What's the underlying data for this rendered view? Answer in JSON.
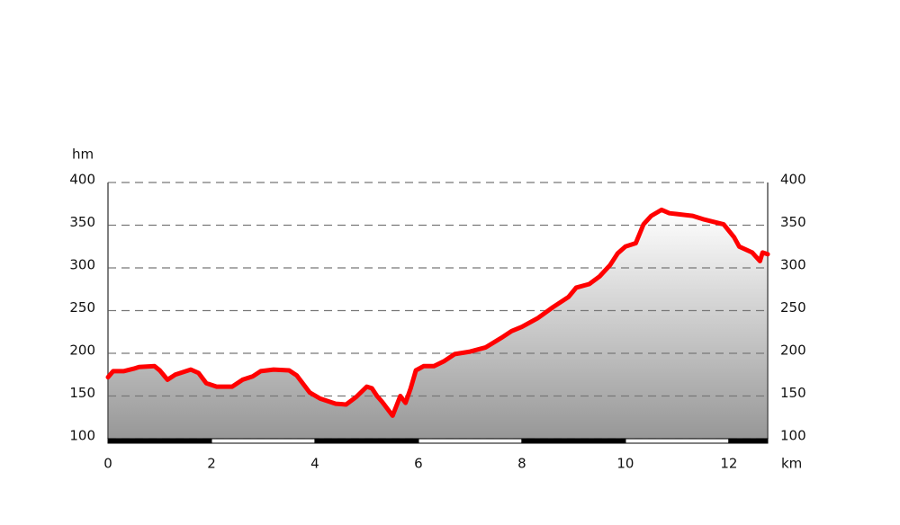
{
  "chart_data": {
    "type": "area",
    "ylabel": "hm",
    "xlabel": "km",
    "x": [
      0,
      0.1,
      0.3,
      0.5,
      0.6,
      0.9,
      1.0,
      1.15,
      1.3,
      1.6,
      1.75,
      1.9,
      2.1,
      2.4,
      2.6,
      2.8,
      2.95,
      3.2,
      3.5,
      3.65,
      3.9,
      4.1,
      4.4,
      4.6,
      4.8,
      5.0,
      5.1,
      5.2,
      5.3,
      5.5,
      5.65,
      5.75,
      5.85,
      5.95,
      6.1,
      6.3,
      6.5,
      6.7,
      7.0,
      7.3,
      7.6,
      7.8,
      8.0,
      8.3,
      8.6,
      8.9,
      9.05,
      9.3,
      9.5,
      9.7,
      9.85,
      10.0,
      10.2,
      10.35,
      10.5,
      10.7,
      10.85,
      11.0,
      11.3,
      11.5,
      11.9,
      12.1,
      12.2,
      12.45,
      12.6,
      12.65,
      12.75
    ],
    "values": [
      172,
      179,
      179,
      182,
      184,
      185,
      180,
      169,
      175,
      181,
      177,
      165,
      161,
      161,
      169,
      173,
      179,
      181,
      180,
      174,
      154,
      147,
      141,
      140,
      149,
      161,
      159,
      150,
      143,
      127,
      150,
      142,
      159,
      180,
      185,
      185,
      191,
      199,
      202,
      207,
      218,
      226,
      231,
      241,
      254,
      266,
      277,
      281,
      290,
      303,
      317,
      325,
      329,
      351,
      361,
      368,
      364,
      363,
      361,
      357,
      351,
      336,
      325,
      318,
      308,
      318,
      316
    ],
    "color": "#ff0000",
    "xlim": [
      0,
      12.75
    ],
    "xticks": [
      0,
      2,
      4,
      6,
      8,
      10,
      12
    ],
    "ylim": [
      100,
      400
    ],
    "yticks": [
      100,
      150,
      200,
      250,
      300,
      350,
      400
    ],
    "grid": true
  }
}
